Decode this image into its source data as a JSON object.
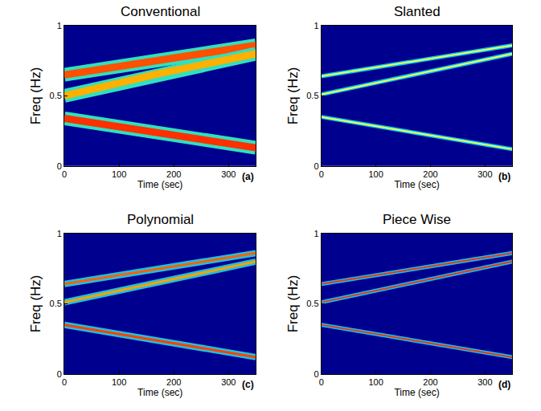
{
  "chart_data": [
    {
      "type": "line",
      "title": "Conventional",
      "xlabel": "Time (sec)",
      "ylabel": "Freq (Hz)",
      "label": "(a)",
      "x": [
        0,
        175,
        350
      ],
      "xlim": [
        0,
        350
      ],
      "xticks": [
        0,
        100,
        200,
        300
      ],
      "ylim": [
        0,
        1
      ],
      "yticks": [
        0,
        0.5,
        1
      ],
      "grid": false,
      "color": "#00008f",
      "line_style": "wide",
      "series": [
        {
          "color": "#ff5000",
          "values": [
            0.65,
            0.76,
            0.86
          ]
        },
        {
          "color": "#ffb000",
          "values": [
            0.5,
            0.66,
            0.8
          ]
        },
        {
          "color": "#ff3000",
          "values": [
            0.34,
            0.235,
            0.13
          ]
        }
      ]
    },
    {
      "type": "line",
      "title": "Slanted",
      "xlabel": "Time (sec)",
      "ylabel": "Freq (Hz)",
      "label": "(b)",
      "x": [
        0,
        175,
        350
      ],
      "xlim": [
        0,
        350
      ],
      "xticks": [
        0,
        100,
        200,
        300
      ],
      "ylim": [
        0,
        1
      ],
      "yticks": [
        0,
        0.5,
        1
      ],
      "grid": false,
      "color": "#00008f",
      "line_style": "thin",
      "series": [
        {
          "color": "#ffff40",
          "values": [
            0.64,
            0.75,
            0.86
          ]
        },
        {
          "color": "#ffff40",
          "values": [
            0.51,
            0.655,
            0.8
          ]
        },
        {
          "color": "#ffff40",
          "values": [
            0.35,
            0.235,
            0.12
          ]
        }
      ]
    },
    {
      "type": "line",
      "title": "Polynomial",
      "xlabel": "Time (sec)",
      "ylabel": "Freq (Hz)",
      "label": "(c)",
      "x": [
        0,
        175,
        350
      ],
      "xlim": [
        0,
        350
      ],
      "xticks": [
        0,
        100,
        200,
        300
      ],
      "ylim": [
        0,
        1
      ],
      "yticks": [
        0,
        0.5,
        1
      ],
      "grid": false,
      "color": "#00008f",
      "line_style": "medium",
      "series": [
        {
          "color": "#ff6000",
          "values": [
            0.64,
            0.75,
            0.86
          ]
        },
        {
          "color": "#ffa000",
          "values": [
            0.51,
            0.655,
            0.8
          ]
        },
        {
          "color": "#ff4000",
          "values": [
            0.35,
            0.235,
            0.12
          ]
        }
      ]
    },
    {
      "type": "line",
      "title": "Piece Wise",
      "xlabel": "Time (sec)",
      "ylabel": "Freq (Hz)",
      "label": "(d)",
      "x": [
        0,
        175,
        350
      ],
      "xlim": [
        0,
        350
      ],
      "xticks": [
        0,
        100,
        200,
        300
      ],
      "ylim": [
        0,
        1
      ],
      "yticks": [
        0,
        0.5,
        1
      ],
      "grid": false,
      "color": "#00008f",
      "line_style": "thin",
      "series": [
        {
          "color": "#ff3000",
          "values": [
            0.64,
            0.75,
            0.86
          ]
        },
        {
          "color": "#ff3000",
          "values": [
            0.51,
            0.655,
            0.8
          ]
        },
        {
          "color": "#ff3000",
          "values": [
            0.35,
            0.235,
            0.12
          ]
        }
      ]
    }
  ]
}
